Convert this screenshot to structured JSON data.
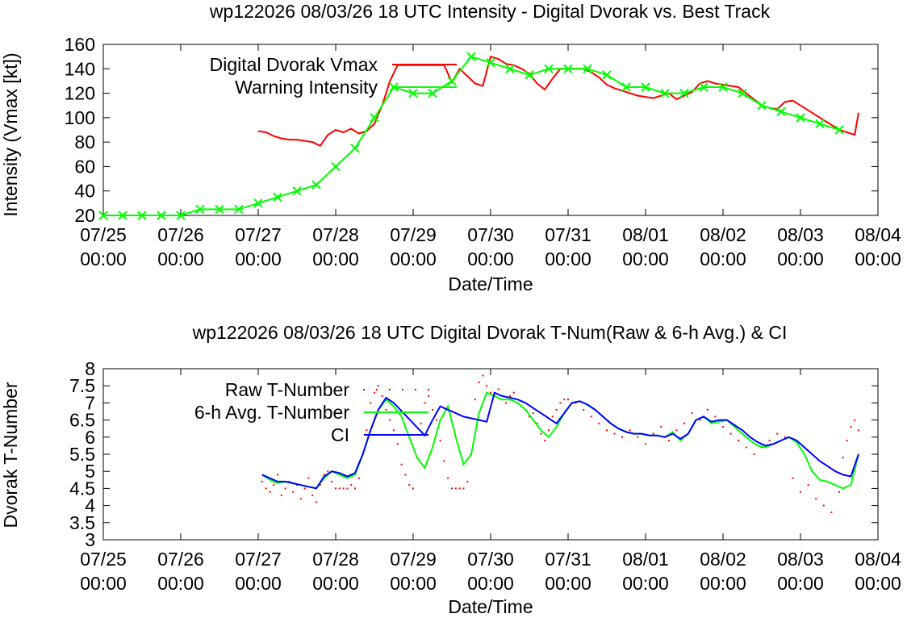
{
  "chart_data": [
    {
      "type": "line",
      "title": "wp122026 08/03/26  18 UTC Intensity - Digital Dvorak vs. Best Track",
      "xlabel": "Date/Time",
      "ylabel": "Intensity (Vmax [kt])",
      "x_ticks": [
        {
          "day": 0,
          "date": "07/25",
          "time": "00:00"
        },
        {
          "day": 1,
          "date": "07/26",
          "time": "00:00"
        },
        {
          "day": 2,
          "date": "07/27",
          "time": "00:00"
        },
        {
          "day": 3,
          "date": "07/28",
          "time": "00:00"
        },
        {
          "day": 4,
          "date": "07/29",
          "time": "00:00"
        },
        {
          "day": 5,
          "date": "07/30",
          "time": "00:00"
        },
        {
          "day": 6,
          "date": "07/31",
          "time": "00:00"
        },
        {
          "day": 7,
          "date": "08/01",
          "time": "00:00"
        },
        {
          "day": 8,
          "date": "08/02",
          "time": "00:00"
        },
        {
          "day": 9,
          "date": "08/03",
          "time": "00:00"
        },
        {
          "day": 10,
          "date": "08/04",
          "time": "00:00"
        }
      ],
      "xlim_days_from": "07/25 00:00",
      "xlim": [
        0,
        10
      ],
      "ylim": [
        20,
        160
      ],
      "y_ticks": [
        20,
        40,
        60,
        80,
        100,
        120,
        140,
        160
      ],
      "grid": false,
      "legend_placement": "top-left",
      "series": [
        {
          "name": "Digital Dvorak Vmax",
          "color": "#ff0000",
          "marker": "none",
          "x": [
            2.0,
            2.1,
            2.2,
            2.3,
            2.4,
            2.5,
            2.6,
            2.7,
            2.8,
            2.9,
            3.0,
            3.1,
            3.2,
            3.3,
            3.4,
            3.5,
            3.6,
            3.7,
            3.8,
            3.9,
            4.0,
            4.1,
            4.2,
            4.3,
            4.4,
            4.5,
            4.6,
            4.7,
            4.8,
            4.9,
            5.0,
            5.1,
            5.2,
            5.3,
            5.4,
            5.5,
            5.6,
            5.7,
            5.8,
            5.9,
            6.0,
            6.1,
            6.2,
            6.3,
            6.4,
            6.5,
            6.6,
            6.7,
            6.8,
            6.9,
            7.0,
            7.1,
            7.2,
            7.3,
            7.4,
            7.5,
            7.6,
            7.7,
            7.8,
            7.9,
            8.0,
            8.1,
            8.2,
            8.3,
            8.4,
            8.5,
            8.6,
            8.7,
            8.8,
            8.9,
            9.0,
            9.1,
            9.2,
            9.3,
            9.4,
            9.5,
            9.6,
            9.7,
            9.75
          ],
          "y": [
            89,
            88,
            85,
            83,
            82,
            82,
            81,
            80,
            77,
            86,
            90,
            88,
            91,
            87,
            89,
            95,
            110,
            130,
            143,
            143,
            143,
            143,
            143,
            143,
            143,
            129,
            140,
            134,
            128,
            126,
            150,
            148,
            144,
            143,
            140,
            136,
            128,
            123,
            132,
            140,
            140,
            140,
            140,
            137,
            133,
            127,
            124,
            122,
            120,
            118,
            117,
            116,
            118,
            120,
            115,
            118,
            121,
            128,
            130,
            128,
            127,
            126,
            125,
            120,
            115,
            110,
            108,
            107,
            113,
            114,
            110,
            106,
            102,
            98,
            94,
            90,
            88,
            86,
            104
          ]
        },
        {
          "name": "Warning Intensity",
          "color": "#00ff00",
          "marker": "x",
          "x": [
            0.0,
            0.25,
            0.5,
            0.75,
            1.0,
            1.25,
            1.5,
            1.75,
            2.0,
            2.25,
            2.5,
            2.75,
            3.0,
            3.25,
            3.5,
            3.75,
            4.0,
            4.25,
            4.5,
            4.75,
            5.0,
            5.25,
            5.5,
            5.75,
            6.0,
            6.25,
            6.5,
            6.75,
            7.0,
            7.25,
            7.5,
            7.75,
            8.0,
            8.25,
            8.5,
            8.75,
            9.0,
            9.25,
            9.5
          ],
          "y": [
            20,
            20,
            20,
            20,
            20,
            25,
            25,
            25,
            30,
            35,
            40,
            45,
            60,
            75,
            100,
            125,
            120,
            120,
            130,
            150,
            145,
            140,
            135,
            140,
            140,
            140,
            135,
            125,
            125,
            120,
            120,
            125,
            125,
            120,
            110,
            105,
            100,
            95,
            90
          ]
        }
      ]
    },
    {
      "type": "line",
      "title": "wp122026 08/03/26  18 UTC Digital Dvorak T-Num(Raw & 6-h Avg.) & CI",
      "xlabel": "Date/Time",
      "ylabel": "Dvorak T-Number",
      "x_ticks": [
        {
          "day": 0,
          "date": "07/25",
          "time": "00:00"
        },
        {
          "day": 1,
          "date": "07/26",
          "time": "00:00"
        },
        {
          "day": 2,
          "date": "07/27",
          "time": "00:00"
        },
        {
          "day": 3,
          "date": "07/28",
          "time": "00:00"
        },
        {
          "day": 4,
          "date": "07/29",
          "time": "00:00"
        },
        {
          "day": 5,
          "date": "07/30",
          "time": "00:00"
        },
        {
          "day": 6,
          "date": "07/31",
          "time": "00:00"
        },
        {
          "day": 7,
          "date": "08/01",
          "time": "00:00"
        },
        {
          "day": 8,
          "date": "08/02",
          "time": "00:00"
        },
        {
          "day": 9,
          "date": "08/03",
          "time": "00:00"
        },
        {
          "day": 10,
          "date": "08/04",
          "time": "00:00"
        }
      ],
      "xlim": [
        0,
        10
      ],
      "ylim": [
        3,
        8
      ],
      "y_ticks": [
        "3",
        "3.5",
        "4",
        "4.5",
        "5",
        "5.5",
        "6",
        "6.5",
        "7",
        "7.5",
        "8"
      ],
      "grid": false,
      "legend_placement": "top-left",
      "series": [
        {
          "name": "Raw T-Number",
          "color": "#ff0000",
          "marker": "dot",
          "x": [
            2.05,
            2.1,
            2.15,
            2.2,
            2.25,
            2.3,
            2.35,
            2.4,
            2.45,
            2.5,
            2.55,
            2.6,
            2.65,
            2.7,
            2.75,
            2.8,
            2.85,
            2.9,
            2.95,
            3.0,
            3.05,
            3.1,
            3.15,
            3.2,
            3.25,
            3.3,
            3.35,
            3.4,
            3.45,
            3.5,
            3.55,
            3.6,
            3.65,
            3.7,
            3.75,
            3.8,
            3.85,
            3.9,
            3.95,
            4.0,
            4.05,
            4.1,
            4.15,
            4.2,
            4.25,
            4.3,
            4.35,
            4.4,
            4.45,
            4.5,
            4.55,
            4.6,
            4.65,
            4.7,
            4.75,
            4.8,
            4.85,
            4.9,
            4.95,
            5.0,
            5.05,
            5.1,
            5.15,
            5.2,
            5.25,
            5.3,
            5.35,
            5.4,
            5.45,
            5.5,
            5.55,
            5.6,
            5.65,
            5.7,
            5.75,
            5.8,
            5.85,
            5.9,
            5.95,
            6.0,
            6.1,
            6.2,
            6.3,
            6.4,
            6.5,
            6.6,
            6.7,
            6.8,
            6.9,
            7.0,
            7.1,
            7.2,
            7.3,
            7.4,
            7.5,
            7.6,
            7.7,
            7.8,
            7.9,
            8.0,
            8.1,
            8.2,
            8.3,
            8.4,
            8.5,
            8.6,
            8.7,
            8.8,
            8.9,
            9.0,
            9.1,
            9.2,
            9.3,
            9.4,
            9.5,
            9.55,
            9.6,
            9.65,
            9.7,
            9.75
          ],
          "y": [
            4.7,
            4.5,
            4.4,
            4.6,
            4.9,
            4.3,
            4.5,
            4.7,
            4.4,
            4.6,
            4.2,
            4.5,
            4.8,
            4.3,
            4.1,
            4.6,
            4.9,
            5.0,
            4.7,
            4.5,
            4.5,
            4.5,
            4.5,
            4.6,
            4.5,
            4.8,
            5.5,
            6.2,
            7.0,
            7.3,
            7.5,
            7.2,
            6.8,
            6.5,
            6.2,
            5.8,
            5.2,
            4.9,
            4.6,
            4.5,
            5.4,
            6.4,
            7.0,
            7.2,
            6.8,
            6.5,
            5.9,
            5.3,
            4.8,
            4.5,
            4.5,
            4.5,
            4.5,
            4.7,
            5.5,
            7.1,
            7.6,
            7.8,
            7.5,
            7.3,
            7.2,
            7.4,
            7.1,
            7.0,
            7.2,
            7.3,
            7.0,
            6.9,
            6.8,
            6.6,
            6.7,
            6.4,
            6.1,
            5.9,
            6.2,
            6.6,
            6.8,
            7.0,
            7.1,
            7.1,
            7.0,
            6.8,
            6.6,
            6.4,
            6.2,
            6.1,
            6.0,
            6.2,
            6.0,
            5.8,
            6.1,
            6.3,
            5.9,
            6.2,
            6.4,
            6.7,
            6.5,
            6.8,
            6.6,
            6.3,
            6.1,
            5.9,
            5.7,
            5.5,
            5.7,
            5.9,
            6.1,
            6.0,
            4.8,
            4.4,
            4.6,
            4.2,
            4.0,
            3.8,
            4.4,
            5.4,
            5.9,
            6.3,
            6.5,
            6.2
          ]
        },
        {
          "name": "6-h Avg. T-Number",
          "color": "#00ff00",
          "marker": "none",
          "x": [
            2.05,
            2.15,
            2.25,
            2.35,
            2.45,
            2.55,
            2.65,
            2.75,
            2.85,
            2.95,
            3.05,
            3.15,
            3.25,
            3.35,
            3.45,
            3.55,
            3.65,
            3.75,
            3.85,
            3.95,
            4.05,
            4.15,
            4.25,
            4.35,
            4.45,
            4.55,
            4.65,
            4.75,
            4.85,
            4.95,
            5.05,
            5.15,
            5.25,
            5.35,
            5.45,
            5.55,
            5.65,
            5.75,
            5.85,
            5.95,
            6.05,
            6.15,
            6.25,
            6.35,
            6.45,
            6.55,
            6.65,
            6.75,
            6.85,
            6.95,
            7.05,
            7.15,
            7.25,
            7.35,
            7.45,
            7.55,
            7.65,
            7.75,
            7.85,
            7.95,
            8.05,
            8.15,
            8.25,
            8.35,
            8.45,
            8.55,
            8.65,
            8.75,
            8.85,
            8.95,
            9.05,
            9.15,
            9.25,
            9.35,
            9.45,
            9.55,
            9.65,
            9.75
          ],
          "y": [
            4.9,
            4.75,
            4.65,
            4.7,
            4.65,
            4.6,
            4.55,
            4.5,
            4.8,
            5.0,
            4.9,
            4.8,
            4.9,
            5.5,
            6.2,
            6.8,
            7.1,
            6.9,
            6.6,
            6.0,
            5.4,
            5.1,
            5.7,
            6.5,
            6.9,
            6.0,
            5.2,
            5.5,
            6.7,
            7.3,
            7.2,
            7.1,
            7.1,
            7.0,
            6.8,
            6.5,
            6.2,
            6.0,
            6.3,
            6.7,
            7.0,
            7.05,
            6.95,
            6.8,
            6.6,
            6.4,
            6.25,
            6.15,
            6.1,
            6.1,
            6.05,
            6.05,
            6.0,
            6.15,
            5.9,
            6.1,
            6.5,
            6.6,
            6.4,
            6.45,
            6.5,
            6.3,
            6.1,
            5.9,
            5.75,
            5.7,
            5.8,
            5.9,
            6.0,
            5.85,
            5.5,
            5.0,
            4.75,
            4.7,
            4.6,
            4.5,
            4.6,
            5.5
          ]
        },
        {
          "name": "CI",
          "color": "#0000ff",
          "marker": "none",
          "x": [
            2.05,
            2.15,
            2.25,
            2.35,
            2.45,
            2.55,
            2.65,
            2.75,
            2.85,
            2.95,
            3.05,
            3.15,
            3.25,
            3.35,
            3.45,
            3.55,
            3.65,
            3.75,
            4.15,
            4.25,
            4.35,
            4.45,
            4.55,
            4.65,
            4.95,
            5.05,
            5.15,
            5.25,
            5.35,
            5.45,
            5.55,
            5.65,
            5.75,
            5.85,
            5.95,
            6.05,
            6.15,
            6.25,
            6.35,
            6.45,
            6.55,
            6.65,
            6.75,
            6.85,
            6.95,
            7.05,
            7.15,
            7.25,
            7.35,
            7.45,
            7.55,
            7.65,
            7.75,
            7.85,
            7.95,
            8.05,
            8.15,
            8.25,
            8.35,
            8.45,
            8.55,
            8.65,
            8.75,
            8.85,
            8.95,
            9.05,
            9.15,
            9.25,
            9.35,
            9.45,
            9.55,
            9.65,
            9.75
          ],
          "y": [
            4.9,
            4.8,
            4.7,
            4.7,
            4.65,
            4.6,
            4.55,
            4.5,
            4.85,
            5.0,
            4.95,
            4.85,
            4.95,
            5.5,
            6.2,
            6.8,
            7.15,
            7.0,
            6.05,
            6.5,
            6.9,
            6.8,
            6.7,
            6.6,
            6.45,
            7.3,
            7.2,
            7.15,
            7.1,
            7.0,
            6.85,
            6.7,
            6.55,
            6.4,
            6.7,
            7.0,
            7.05,
            6.95,
            6.8,
            6.6,
            6.4,
            6.25,
            6.15,
            6.1,
            6.1,
            6.05,
            6.05,
            6.0,
            6.1,
            5.95,
            6.1,
            6.5,
            6.6,
            6.45,
            6.5,
            6.5,
            6.35,
            6.2,
            6.0,
            5.85,
            5.75,
            5.8,
            5.9,
            6.0,
            5.9,
            5.7,
            5.5,
            5.3,
            5.15,
            5.0,
            4.9,
            4.85,
            5.5
          ]
        }
      ]
    }
  ]
}
